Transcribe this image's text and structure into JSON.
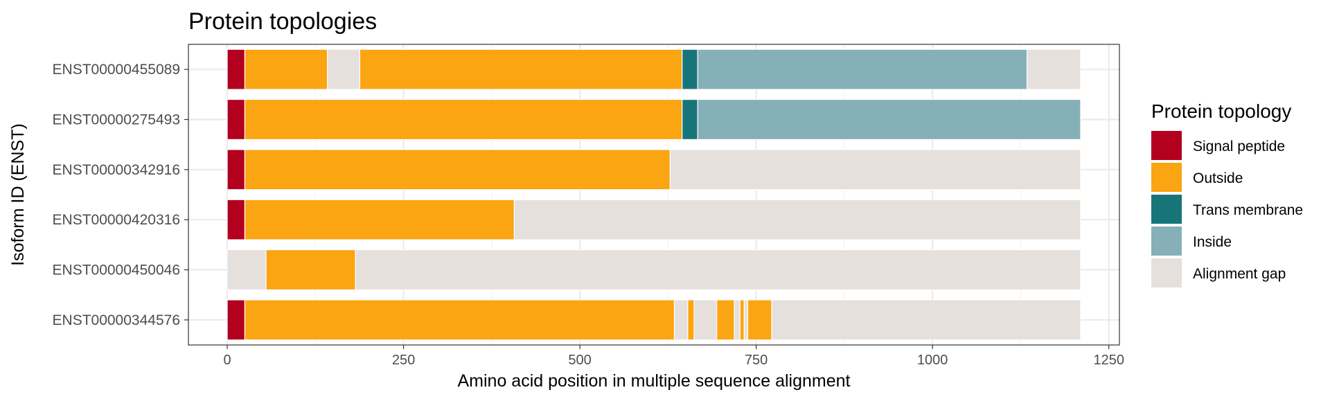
{
  "chart_data": {
    "type": "bar",
    "orientation": "horizontal",
    "stacked": true,
    "title": "Protein topologies",
    "xlabel": "Amino acid position in multiple sequence alignment",
    "ylabel": "Isoform ID (ENST)",
    "xlim": [
      -55,
      1265
    ],
    "xticks": [
      0,
      250,
      500,
      750,
      1000,
      1250
    ],
    "grid": true,
    "legend_position": "right",
    "legend_title": "Protein topology",
    "legend": [
      {
        "key": "signal",
        "label": "Signal peptide",
        "color": "#B2001E"
      },
      {
        "key": "outside",
        "label": "Outside",
        "color": "#FBA513"
      },
      {
        "key": "tm",
        "label": "Trans membrane",
        "color": "#17757A"
      },
      {
        "key": "inside",
        "label": "Inside",
        "color": "#86B0B8"
      },
      {
        "key": "gap",
        "label": "Alignment gap",
        "color": "#E6E0DC"
      }
    ],
    "categories": [
      "ENST00000455089",
      "ENST00000275493",
      "ENST00000342916",
      "ENST00000420316",
      "ENST00000450046",
      "ENST00000344576"
    ],
    "segments": [
      [
        [
          0,
          25,
          "signal"
        ],
        [
          25,
          142,
          "outside"
        ],
        [
          142,
          188,
          "gap"
        ],
        [
          188,
          645,
          "outside"
        ],
        [
          645,
          667,
          "tm"
        ],
        [
          667,
          1134,
          "inside"
        ],
        [
          1134,
          1210,
          "gap"
        ]
      ],
      [
        [
          0,
          25,
          "signal"
        ],
        [
          25,
          645,
          "outside"
        ],
        [
          645,
          667,
          "tm"
        ],
        [
          667,
          1210,
          "inside"
        ]
      ],
      [
        [
          0,
          25,
          "signal"
        ],
        [
          25,
          628,
          "outside"
        ],
        [
          628,
          1210,
          "gap"
        ]
      ],
      [
        [
          0,
          25,
          "signal"
        ],
        [
          25,
          407,
          "outside"
        ],
        [
          407,
          1210,
          "gap"
        ]
      ],
      [
        [
          0,
          55,
          "gap"
        ],
        [
          55,
          182,
          "outside"
        ],
        [
          182,
          1210,
          "gap"
        ]
      ],
      [
        [
          0,
          25,
          "signal"
        ],
        [
          25,
          634,
          "outside"
        ],
        [
          634,
          653,
          "gap"
        ],
        [
          653,
          662,
          "outside"
        ],
        [
          662,
          694,
          "gap"
        ],
        [
          694,
          719,
          "outside"
        ],
        [
          719,
          727,
          "gap"
        ],
        [
          727,
          733,
          "outside"
        ],
        [
          733,
          738,
          "gap"
        ],
        [
          738,
          772,
          "outside"
        ],
        [
          772,
          1210,
          "gap"
        ]
      ]
    ]
  }
}
